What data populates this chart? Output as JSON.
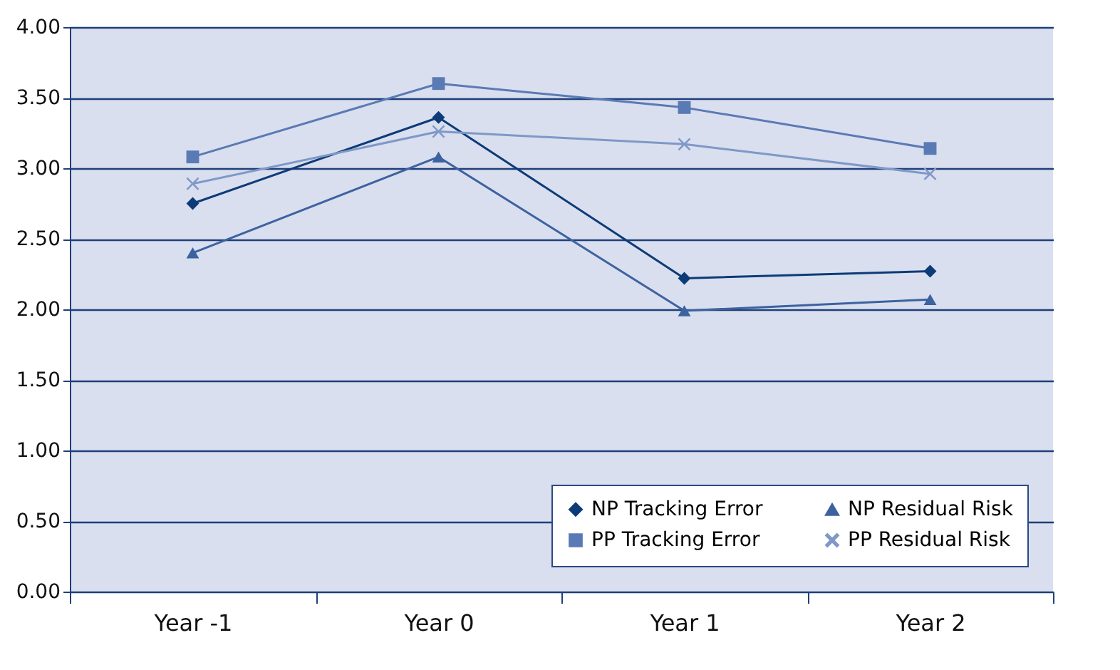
{
  "chart_data": {
    "type": "line",
    "categories": [
      "Year -1",
      "Year 0",
      "Year 1",
      "Year 2"
    ],
    "series": [
      {
        "name": "NP Tracking Error",
        "color": "#0d3b78",
        "marker": "diamond",
        "values": [
          2.75,
          3.36,
          2.22,
          2.27
        ]
      },
      {
        "name": "PP Tracking Error",
        "color": "#5a7ab5",
        "marker": "square",
        "values": [
          3.08,
          3.6,
          3.43,
          3.14
        ]
      },
      {
        "name": "NP Residual Risk",
        "color": "#3d62a0",
        "marker": "triangle",
        "values": [
          2.4,
          3.08,
          1.99,
          2.07
        ]
      },
      {
        "name": "PP Residual Risk",
        "color": "#7f98c8",
        "marker": "cross",
        "values": [
          2.89,
          3.26,
          3.17,
          2.96
        ]
      }
    ],
    "ylim": [
      0,
      4
    ],
    "yticks": [
      {
        "value": 0,
        "label": "0.00"
      },
      {
        "value": 0.5,
        "label": "0.50"
      },
      {
        "value": 1,
        "label": "1.00"
      },
      {
        "value": 1.5,
        "label": "1.50"
      },
      {
        "value": 2,
        "label": "2.00"
      },
      {
        "value": 2.5,
        "label": "2.50"
      },
      {
        "value": 3,
        "label": "3.00"
      },
      {
        "value": 3.5,
        "label": "3.50"
      },
      {
        "value": 4,
        "label": "4.00"
      }
    ],
    "grid": "y",
    "legend": "bottom right",
    "line_style": "solid"
  }
}
